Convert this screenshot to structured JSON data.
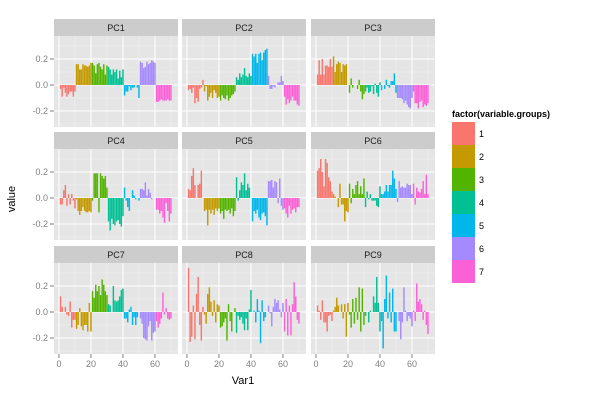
{
  "chart_data": {
    "type": "bar",
    "facet_layout": "3x3 grid",
    "xlabel": "Var1",
    "ylabel": "value",
    "xlim": [
      -3.1,
      74.4
    ],
    "ylim": [
      -0.323,
      0.377
    ],
    "x_ticks": [
      0,
      20,
      40,
      60
    ],
    "y_ticks": [
      -0.2,
      0.0,
      0.2
    ],
    "y_tick_labels": [
      "-0.2",
      "0.0",
      "0.2"
    ],
    "x_tick_labels": [
      "0",
      "20",
      "40",
      "60"
    ],
    "grid": true,
    "legend": {
      "title": "factor(variable.groups)",
      "placement": "right",
      "entries": [
        {
          "label": "1",
          "color": "#F8766D"
        },
        {
          "label": "2",
          "color": "#C49A00"
        },
        {
          "label": "3",
          "color": "#53B400"
        },
        {
          "label": "4",
          "color": "#00C094"
        },
        {
          "label": "5",
          "color": "#00B6EB"
        },
        {
          "label": "6",
          "color": "#A58AFF"
        },
        {
          "label": "7",
          "color": "#FB61D7"
        }
      ]
    },
    "variable_groups": [
      1,
      1,
      1,
      1,
      1,
      1,
      1,
      1,
      1,
      1,
      2,
      2,
      2,
      2,
      2,
      2,
      2,
      2,
      2,
      2,
      3,
      3,
      3,
      3,
      3,
      3,
      3,
      3,
      3,
      3,
      4,
      4,
      4,
      4,
      4,
      4,
      4,
      4,
      4,
      4,
      5,
      5,
      5,
      5,
      5,
      5,
      5,
      5,
      5,
      5,
      6,
      6,
      6,
      6,
      6,
      6,
      6,
      6,
      6,
      6,
      7,
      7,
      7,
      7,
      7,
      7,
      7,
      7,
      7,
      7
    ],
    "panels": [
      {
        "title": "PC1",
        "values": [
          -0.03,
          -0.09,
          -0.02,
          -0.06,
          -0.09,
          -0.07,
          -0.05,
          -0.05,
          -0.09,
          -0.05,
          0.16,
          0.16,
          0.12,
          0.12,
          0.16,
          0.15,
          0.15,
          0.14,
          0.15,
          0.17,
          0.17,
          0.15,
          0.09,
          0.16,
          0.17,
          0.14,
          0.12,
          0.16,
          0.08,
          0.15,
          0.14,
          0.12,
          0.08,
          0.12,
          0.1,
          0.12,
          0.05,
          0.11,
          0.06,
          0.12,
          -0.08,
          -0.05,
          -0.05,
          -0.01,
          -0.04,
          -0.02,
          -0.02,
          0.0,
          -0.02,
          -0.1,
          0.18,
          0.17,
          0.13,
          0.14,
          0.18,
          0.16,
          0.17,
          0.19,
          0.18,
          0.17,
          -0.13,
          -0.13,
          -0.12,
          -0.11,
          -0.12,
          -0.12,
          -0.12,
          -0.11,
          -0.12,
          -0.12
        ]
      },
      {
        "title": "PC2",
        "values": [
          -0.04,
          -0.03,
          -0.06,
          -0.02,
          -0.14,
          -0.1,
          -0.13,
          -0.03,
          -0.02,
          0.04,
          -0.05,
          -0.01,
          -0.12,
          -0.09,
          -0.06,
          -0.1,
          -0.04,
          -0.06,
          -0.1,
          -0.09,
          -0.12,
          -0.08,
          -0.1,
          -0.11,
          -0.08,
          -0.12,
          -0.1,
          -0.08,
          -0.07,
          -0.05,
          0.06,
          0.04,
          0.09,
          0.06,
          0.08,
          0.13,
          0.07,
          0.06,
          0.09,
          0.07,
          0.24,
          0.22,
          0.24,
          0.17,
          0.24,
          0.25,
          0.19,
          0.25,
          0.27,
          0.28,
          0.07,
          -0.03,
          -0.03,
          -0.01,
          -0.02,
          0.0,
          0.02,
          0.02,
          0.07,
          0.03,
          -0.09,
          -0.15,
          -0.11,
          -0.14,
          -0.12,
          -0.09,
          -0.12,
          -0.12,
          -0.15,
          -0.16
        ]
      },
      {
        "title": "PC3",
        "values": [
          0.08,
          0.19,
          0.08,
          0.2,
          0.08,
          0.15,
          0.15,
          0.14,
          0.2,
          0.14,
          0.22,
          0.1,
          0.16,
          0.18,
          0.17,
          0.1,
          0.16,
          0.15,
          0.16,
          0.0,
          -0.06,
          0.05,
          -0.02,
          0.0,
          0.0,
          -0.03,
          0.04,
          -0.05,
          -0.11,
          -0.07,
          -0.05,
          -0.02,
          -0.06,
          -0.05,
          -0.01,
          -0.07,
          0.01,
          -0.06,
          -0.09,
          0.02,
          -0.04,
          0.0,
          -0.03,
          0.04,
          -0.01,
          -0.02,
          0.03,
          0.03,
          0.09,
          -0.06,
          -0.1,
          -0.1,
          -0.1,
          -0.11,
          -0.14,
          -0.12,
          -0.15,
          -0.17,
          -0.18,
          -0.1,
          -0.05,
          -0.14,
          -0.14,
          -0.18,
          -0.13,
          -0.12,
          -0.17,
          -0.15,
          -0.16,
          -0.14
        ]
      },
      {
        "title": "PC4",
        "values": [
          -0.05,
          -0.05,
          0.06,
          0.1,
          -0.06,
          0.03,
          -0.05,
          0.03,
          -0.02,
          -0.08,
          -0.01,
          -0.1,
          -0.13,
          -0.1,
          -0.07,
          -0.1,
          -0.11,
          -0.11,
          -0.1,
          -0.11,
          -0.02,
          0.19,
          0.19,
          0.19,
          -0.11,
          0.19,
          0.17,
          0.15,
          0.17,
          0.08,
          -0.18,
          -0.25,
          -0.16,
          -0.2,
          -0.21,
          -0.18,
          -0.17,
          -0.2,
          -0.22,
          -0.14,
          0.08,
          -0.02,
          -0.07,
          -0.1,
          0.0,
          0.06,
          0.02,
          -0.01,
          0.0,
          -0.02,
          0.07,
          0.07,
          0.06,
          0.12,
          0.02,
          0.07,
          0.04,
          -0.01,
          0.0,
          0.0,
          -0.09,
          -0.09,
          -0.12,
          -0.1,
          -0.15,
          -0.19,
          -0.04,
          -0.1,
          -0.18,
          -0.12
        ]
      },
      {
        "title": "PC5",
        "values": [
          0.07,
          0.06,
          0.17,
          0.23,
          0.1,
          0.0,
          0.1,
          0.11,
          0.21,
          0.0,
          -0.1,
          -0.09,
          -0.21,
          -0.09,
          -0.12,
          -0.09,
          -0.13,
          -0.08,
          -0.1,
          -0.08,
          -0.12,
          -0.1,
          -0.16,
          -0.09,
          -0.1,
          -0.09,
          -0.12,
          -0.08,
          -0.14,
          -0.1,
          0.16,
          -0.02,
          0.06,
          0.12,
          0.1,
          0.19,
          0.06,
          0.11,
          0.08,
          0.0,
          -0.18,
          -0.1,
          -0.12,
          -0.09,
          -0.15,
          -0.17,
          -0.12,
          -0.11,
          -0.14,
          -0.21,
          0.13,
          0.13,
          0.14,
          0.08,
          0.13,
          0.12,
          -0.04,
          0.15,
          -0.06,
          -0.09,
          -0.08,
          -0.12,
          -0.15,
          -0.06,
          -0.12,
          -0.09,
          -0.08,
          -0.11,
          -0.07,
          -0.07
        ]
      },
      {
        "title": "PC6",
        "values": [
          0.21,
          0.23,
          0.3,
          0.2,
          0.09,
          0.3,
          0.27,
          0.16,
          0.13,
          0.05,
          0.03,
          0.01,
          0.0,
          -0.07,
          0.11,
          -0.05,
          -0.05,
          -0.18,
          -0.1,
          -0.11,
          0.11,
          -0.04,
          0.07,
          0.03,
          0.1,
          0.13,
          0.03,
          0.09,
          0.03,
          0.15,
          -0.07,
          0.05,
          -0.01,
          0.03,
          -0.02,
          -0.02,
          -0.02,
          -0.06,
          -0.07,
          0.09,
          0.03,
          0.03,
          0.05,
          0.1,
          0.05,
          0.1,
          0.1,
          0.21,
          0.15,
          0.07,
          -0.03,
          0.13,
          0.08,
          0.09,
          0.08,
          0.08,
          0.11,
          0.1,
          0.1,
          0.03,
          0.11,
          -0.05,
          0.08,
          0.05,
          0.04,
          0.07,
          0.13,
          0.03,
          0.18,
          0.03
        ]
      },
      {
        "title": "PC7",
        "values": [
          0.12,
          0.04,
          0.0,
          0.04,
          -0.02,
          -0.03,
          0.08,
          -0.12,
          -0.06,
          -0.06,
          -0.13,
          -0.1,
          0.03,
          -0.11,
          -0.14,
          -0.1,
          -0.1,
          -0.15,
          0.07,
          -0.15,
          0.16,
          0.11,
          0.21,
          0.16,
          0.2,
          0.13,
          0.25,
          0.21,
          0.16,
          0.13,
          0.06,
          0.05,
          0.0,
          0.2,
          0.09,
          0.08,
          0.09,
          0.12,
          0.17,
          0.18,
          -0.05,
          -0.05,
          -0.08,
          0.02,
          0.04,
          -0.1,
          -0.04,
          -0.1,
          -0.04,
          0.0,
          -0.05,
          -0.09,
          -0.2,
          -0.21,
          -0.22,
          -0.11,
          -0.07,
          -0.22,
          -0.16,
          -0.15,
          -0.07,
          -0.12,
          -0.09,
          -0.05,
          0.15,
          -0.02,
          0.03,
          -0.05,
          -0.06,
          -0.05
        ]
      },
      {
        "title": "PC8",
        "values": [
          0.34,
          -0.23,
          -0.19,
          0.05,
          -0.21,
          0.14,
          0.27,
          -0.1,
          -0.22,
          0.04,
          -0.02,
          -0.09,
          0.14,
          0.19,
          0.08,
          -0.03,
          0.09,
          -0.08,
          0.06,
          0.05,
          -0.12,
          -0.11,
          -0.08,
          -0.05,
          -0.22,
          0.06,
          -0.07,
          -0.15,
          0.0,
          0.03,
          -0.16,
          -0.03,
          -0.06,
          -0.04,
          -0.09,
          -0.14,
          -0.05,
          -0.14,
          0.02,
          0.17,
          0.0,
          0.01,
          -0.08,
          0.1,
          0.01,
          -0.24,
          0.09,
          -0.07,
          -0.04,
          0.0,
          0.05,
          -0.01,
          -0.11,
          0.04,
          0.1,
          0.07,
          0.09,
          0.02,
          -0.04,
          0.07,
          -0.15,
          0.1,
          -0.18,
          0.05,
          -0.18,
          0.06,
          0.23,
          0.12,
          -0.06,
          -0.09
        ]
      },
      {
        "title": "PC9",
        "values": [
          0.05,
          0.01,
          -0.06,
          0.09,
          -0.08,
          -0.08,
          -0.15,
          -0.03,
          -0.02,
          -0.07,
          0.01,
          0.04,
          0.11,
          0.05,
          0.0,
          0.06,
          -0.05,
          0.06,
          -0.19,
          0.07,
          -0.02,
          -0.12,
          0.1,
          -0.09,
          0.11,
          -0.06,
          0.19,
          -0.15,
          0.18,
          -0.1,
          -0.03,
          0.0,
          -0.08,
          0.01,
          0.0,
          0.12,
          0.07,
          0.27,
          0.07,
          -0.15,
          -0.07,
          -0.28,
          0.1,
          0.28,
          -0.05,
          0.15,
          -0.08,
          0.18,
          -0.15,
          -0.15,
          0.0,
          -0.07,
          -0.21,
          -0.08,
          0.19,
          0.01,
          -0.07,
          -0.03,
          -0.05,
          -0.11,
          0.01,
          -0.07,
          0.22,
          0.08,
          0.1,
          0.06,
          -0.06,
          0.01,
          -0.1,
          -0.17
        ]
      }
    ]
  }
}
